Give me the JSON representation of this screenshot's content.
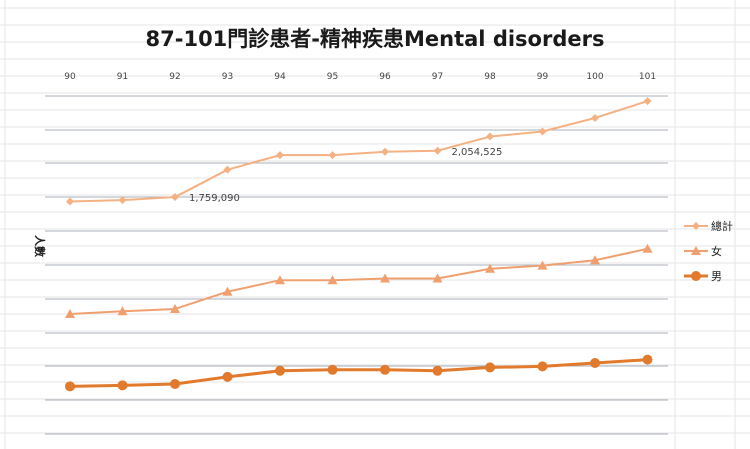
{
  "chart_data": {
    "type": "line",
    "title": "87-101門診患者-精神疾患Mental disorders",
    "ylabel": "人數",
    "xlabel": "",
    "categories": [
      "90",
      "91",
      "92",
      "93",
      "94",
      "95",
      "96",
      "97",
      "98",
      "99",
      "100",
      "101"
    ],
    "grid": true,
    "legend_position": "right",
    "series": [
      {
        "name": "總計",
        "color": "#f4b183",
        "marker": "diamond",
        "values": [
          0.688,
          0.692,
          0.701,
          0.782,
          0.825,
          0.825,
          0.835,
          0.838,
          0.88,
          0.895,
          0.935,
          0.985
        ]
      },
      {
        "name": "女",
        "color": "#f0a070",
        "marker": "triangle",
        "values": [
          0.355,
          0.363,
          0.37,
          0.421,
          0.455,
          0.455,
          0.46,
          0.46,
          0.489,
          0.498,
          0.514,
          0.548
        ]
      },
      {
        "name": "男",
        "color": "#e27a2d",
        "marker": "circle",
        "values": [
          0.141,
          0.144,
          0.148,
          0.169,
          0.187,
          0.19,
          0.19,
          0.187,
          0.197,
          0.2,
          0.21,
          0.22
        ]
      }
    ],
    "data_labels": [
      {
        "series": 0,
        "index": 2,
        "text": "1,759,090"
      },
      {
        "series": 0,
        "index": 7,
        "text": "2,054,525"
      }
    ]
  }
}
